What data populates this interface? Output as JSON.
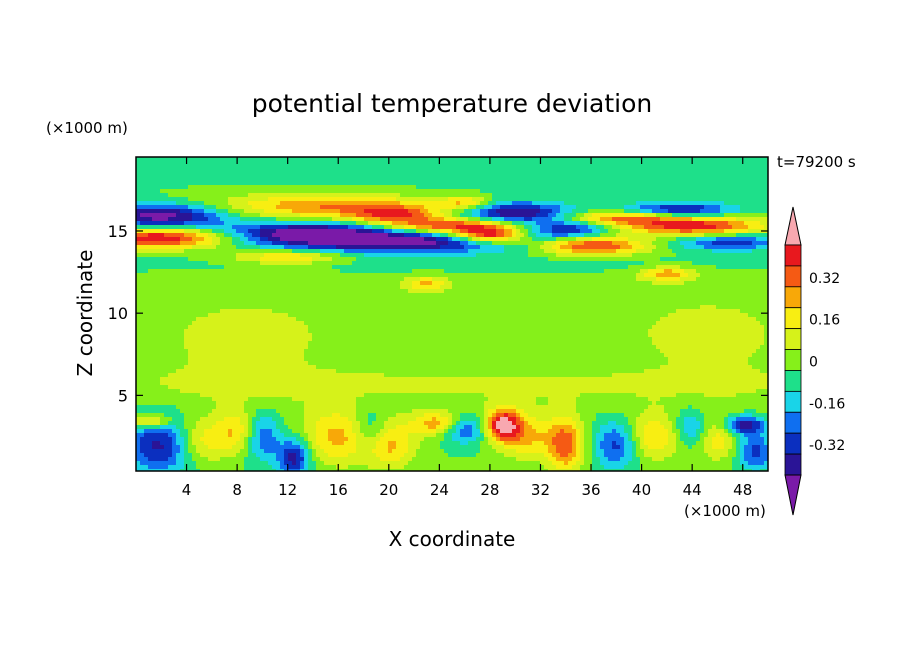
{
  "chart_data": {
    "type": "heatmap",
    "title": "potential temperature deviation",
    "xlabel": "X coordinate",
    "ylabel": "Z coordinate",
    "x_unit": "(×1000 m)",
    "y_unit": "(×1000 m)",
    "time_label": "t=79200 s",
    "xlim": [
      0,
      50
    ],
    "ylim": [
      0.4,
      19.5
    ],
    "x_ticks": [
      "4",
      "8",
      "12",
      "16",
      "20",
      "24",
      "28",
      "32",
      "36",
      "40",
      "44",
      "48"
    ],
    "y_ticks": [
      "5",
      "10",
      "15"
    ],
    "colorbar": {
      "levels": [
        -0.48,
        -0.4,
        -0.32,
        -0.24,
        -0.16,
        -0.08,
        0,
        0.08,
        0.16,
        0.24,
        0.32,
        0.4,
        0.48
      ],
      "tick_labels": [
        "0.32",
        "0.16",
        "0",
        "-0.16",
        "-0.32"
      ],
      "colors": [
        "#7a1aa8",
        "#2a1496",
        "#0b2fbf",
        "#0f6ff0",
        "#19d4e8",
        "#1ee08a",
        "#86f01a",
        "#d6f21a",
        "#f8ee12",
        "#f8a808",
        "#f55a14",
        "#e8181e",
        "#f8a8b0"
      ]
    },
    "fields": [
      {
        "x": 25,
        "z": 9.0,
        "sx": 30,
        "sz": 3,
        "v": 0.06
      },
      {
        "x": 8,
        "z": 8.0,
        "sx": 5,
        "sz": 2.5,
        "v": 0.05
      },
      {
        "x": 46,
        "z": 8.5,
        "sx": 5,
        "sz": 2.5,
        "v": 0.05
      },
      {
        "x": 33,
        "z": 18.0,
        "sx": 20,
        "sz": 1.5,
        "v": -0.02
      },
      {
        "x": 25,
        "z": 13.0,
        "sx": 30,
        "sz": 0.5,
        "v": -0.05
      },
      {
        "x": 25,
        "z": 5.5,
        "sx": 30,
        "sz": 0.8,
        "v": 0.06
      },
      {
        "x": 2,
        "z": 14.6,
        "sx": 4,
        "sz": 0.45,
        "v": 0.5
      },
      {
        "x": 2,
        "z": 16.0,
        "sx": 3.5,
        "sz": 0.45,
        "v": -0.42
      },
      {
        "x": 1.5,
        "z": 15.4,
        "sx": 5,
        "sz": 0.4,
        "v": -0.12
      },
      {
        "x": 15,
        "z": 16.5,
        "sx": 6,
        "sz": 0.55,
        "v": 0.32
      },
      {
        "x": 20.5,
        "z": 16.0,
        "sx": 2.5,
        "sz": 0.4,
        "v": 0.3
      },
      {
        "x": 14,
        "z": 14.9,
        "sx": 5,
        "sz": 0.45,
        "v": -0.46
      },
      {
        "x": 21,
        "z": 14.3,
        "sx": 7,
        "sz": 0.45,
        "v": -0.44
      },
      {
        "x": 25,
        "z": 15.3,
        "sx": 4,
        "sz": 0.35,
        "v": 0.42
      },
      {
        "x": 28,
        "z": 14.7,
        "sx": 2,
        "sz": 0.35,
        "v": 0.5
      },
      {
        "x": 30,
        "z": 16.1,
        "sx": 3,
        "sz": 0.45,
        "v": -0.42
      },
      {
        "x": 34,
        "z": 15.1,
        "sx": 2.5,
        "sz": 0.4,
        "v": -0.34
      },
      {
        "x": 36,
        "z": 14.1,
        "sx": 3,
        "sz": 0.4,
        "v": 0.44
      },
      {
        "x": 38,
        "z": 15.8,
        "sx": 3,
        "sz": 0.3,
        "v": 0.32
      },
      {
        "x": 44,
        "z": 15.3,
        "sx": 4,
        "sz": 0.4,
        "v": 0.45
      },
      {
        "x": 43,
        "z": 16.3,
        "sx": 3,
        "sz": 0.3,
        "v": -0.34
      },
      {
        "x": 47,
        "z": 14.3,
        "sx": 3,
        "sz": 0.35,
        "v": -0.3
      },
      {
        "x": 12,
        "z": 13.4,
        "sx": 3,
        "sz": 0.3,
        "v": 0.26
      },
      {
        "x": 42,
        "z": 12.4,
        "sx": 1.5,
        "sz": 0.3,
        "v": 0.28
      },
      {
        "x": 23,
        "z": 11.8,
        "sx": 1.2,
        "sz": 0.3,
        "v": 0.22
      },
      {
        "x": 26,
        "z": 16.7,
        "sx": 1.5,
        "sz": 0.3,
        "v": 0.25
      },
      {
        "x": 2,
        "z": 2.0,
        "sx": 2,
        "sz": 1.2,
        "v": -0.36
      },
      {
        "x": 1,
        "z": 3.4,
        "sx": 1.2,
        "sz": 0.3,
        "v": 0.32
      },
      {
        "x": 5,
        "z": 2.2,
        "sx": 1.5,
        "sz": 1.0,
        "v": 0.24
      },
      {
        "x": 8,
        "z": 2.8,
        "sx": 1.2,
        "sz": 0.9,
        "v": 0.22
      },
      {
        "x": 10,
        "z": 2.5,
        "sx": 1.0,
        "sz": 1.0,
        "v": -0.26
      },
      {
        "x": 12.5,
        "z": 1.2,
        "sx": 0.9,
        "sz": 0.8,
        "v": -0.38
      },
      {
        "x": 16,
        "z": 2.5,
        "sx": 2.0,
        "sz": 1.2,
        "v": 0.26
      },
      {
        "x": 18.5,
        "z": 2.8,
        "sx": 1.0,
        "sz": 1.0,
        "v": -0.2
      },
      {
        "x": 20,
        "z": 2.0,
        "sx": 1.5,
        "sz": 1.0,
        "v": 0.26
      },
      {
        "x": 24,
        "z": 3.3,
        "sx": 1.5,
        "sz": 0.5,
        "v": 0.3
      },
      {
        "x": 26,
        "z": 3.0,
        "sx": 1.2,
        "sz": 0.6,
        "v": -0.3
      },
      {
        "x": 29,
        "z": 3.2,
        "sx": 1.0,
        "sz": 0.7,
        "v": 0.5
      },
      {
        "x": 31,
        "z": 2.5,
        "sx": 1.5,
        "sz": 1.0,
        "v": 0.24
      },
      {
        "x": 34,
        "z": 2.0,
        "sx": 1.0,
        "sz": 1.2,
        "v": 0.36
      },
      {
        "x": 38,
        "z": 2.0,
        "sx": 1.2,
        "sz": 1.0,
        "v": -0.28
      },
      {
        "x": 41,
        "z": 2.5,
        "sx": 1.5,
        "sz": 1.0,
        "v": 0.24
      },
      {
        "x": 44,
        "z": 3.0,
        "sx": 1.0,
        "sz": 0.8,
        "v": -0.22
      },
      {
        "x": 46,
        "z": 2.5,
        "sx": 1.2,
        "sz": 1.0,
        "v": 0.22
      },
      {
        "x": 48,
        "z": 3.2,
        "sx": 1.2,
        "sz": 0.4,
        "v": -0.4
      },
      {
        "x": 49,
        "z": 1.6,
        "sx": 1.0,
        "sz": 0.8,
        "v": -0.28
      }
    ]
  }
}
